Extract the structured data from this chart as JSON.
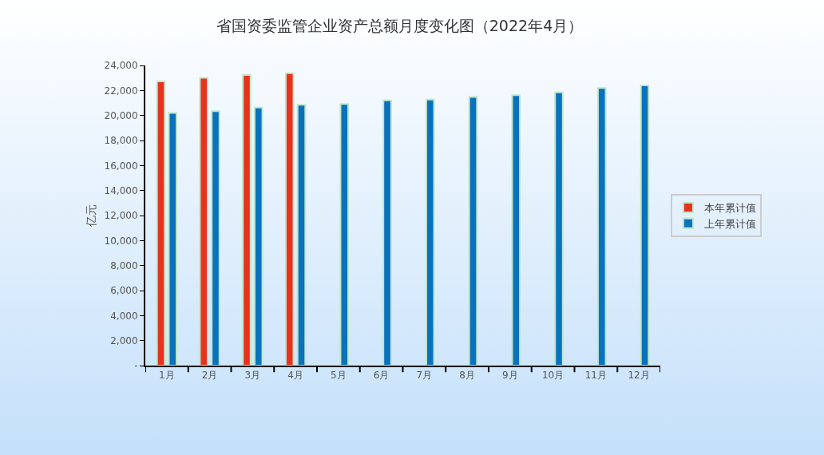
{
  "chart_data": {
    "type": "bar",
    "title": "省国资委监管企业资产总额月度变化图（2022年4月）",
    "ylabel": "亿元",
    "categories": [
      "1月",
      "2月",
      "3月",
      "4月",
      "5月",
      "6月",
      "7月",
      "8月",
      "9月",
      "10月",
      "11月",
      "12月"
    ],
    "series": [
      {
        "name": "本年累计值",
        "color": "#e8321e",
        "values": [
          22730,
          23010,
          23240,
          23380,
          null,
          null,
          null,
          null,
          null,
          null,
          null,
          null
        ]
      },
      {
        "name": "上年累计值",
        "color": "#0a72bd",
        "values": [
          20210,
          20350,
          20630,
          20850,
          20920,
          21200,
          21270,
          21480,
          21620,
          21840,
          22190,
          22400
        ]
      }
    ],
    "ylim": [
      0,
      24000
    ],
    "yticks": [
      {
        "value": 0,
        "label": "-"
      },
      {
        "value": 2000,
        "label": "2,000"
      },
      {
        "value": 4000,
        "label": "4,000"
      },
      {
        "value": 6000,
        "label": "6,000"
      },
      {
        "value": 8000,
        "label": "8,000"
      },
      {
        "value": 10000,
        "label": "10,000"
      },
      {
        "value": 12000,
        "label": "12,000"
      },
      {
        "value": 14000,
        "label": "14,000"
      },
      {
        "value": 16000,
        "label": "16,000"
      },
      {
        "value": 18000,
        "label": "18,000"
      },
      {
        "value": 20000,
        "label": "20,000"
      },
      {
        "value": 22000,
        "label": "22,000"
      },
      {
        "value": 24000,
        "label": "24,000"
      }
    ],
    "grid": false,
    "legend": "right"
  }
}
